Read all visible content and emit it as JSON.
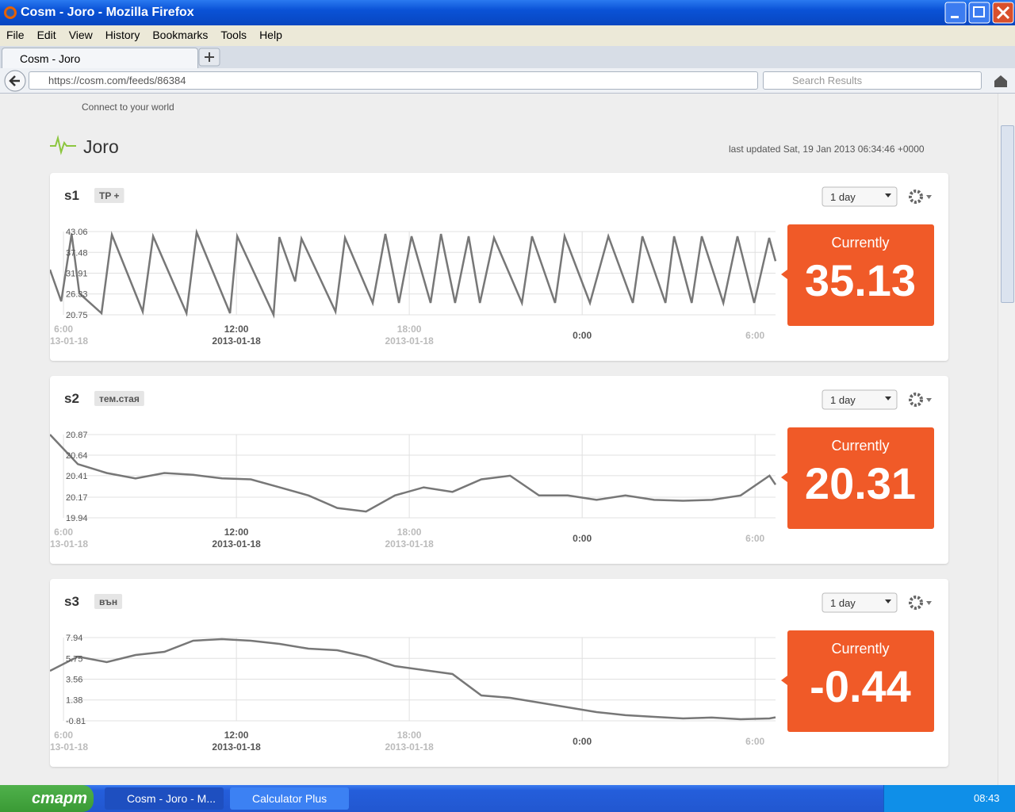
{
  "window": {
    "title": "Cosm - Joro - Mozilla Firefox",
    "menu": [
      "File",
      "Edit",
      "View",
      "History",
      "Bookmarks",
      "Tools",
      "Help"
    ]
  },
  "browser": {
    "tab": "Cosm - Joro",
    "url": "https://cosm.com/feeds/86384",
    "search": "Search Results"
  },
  "site": {
    "tagline": "Connect to your world",
    "feed_title": "Joro",
    "last_updated": "last updated Sat, 19 Jan 2013 06:34:46 +0000"
  },
  "chart_data": [
    {
      "type": "line",
      "title": "s1",
      "tag": "TP +",
      "range": "1 day",
      "current_label": "Currently",
      "current": 35.13,
      "x": [
        5.53,
        5.92,
        6.28,
        6.55,
        7.32,
        7.68,
        8.75,
        9.11,
        10.27,
        10.62,
        11.78,
        12.03,
        13.29,
        13.49,
        14.04,
        14.26,
        15.44,
        15.77,
        16.73,
        17.17,
        17.64,
        18.08,
        18.74,
        19.1,
        19.59,
        20.06,
        20.45,
        20.94,
        21.91,
        22.26,
        23.06,
        23.39,
        24.27,
        24.91,
        25.76,
        26.09,
        26.89,
        27.19,
        27.8,
        28.15,
        28.9,
        29.39,
        29.97,
        30.49,
        30.71
      ],
      "series": [
        {
          "color": "#777777",
          "values": [
            32.86,
            24.36,
            42.42,
            26.48,
            21.17,
            42.21,
            21.6,
            41.79,
            21.17,
            42.85,
            21.17,
            41.79,
            20.75,
            41.57,
            29.67,
            41.15,
            21.6,
            41.36,
            23.93,
            42.42,
            23.93,
            41.79,
            23.93,
            42.42,
            23.93,
            41.79,
            23.93,
            41.36,
            23.93,
            41.79,
            23.93,
            41.79,
            23.93,
            41.79,
            23.93,
            41.79,
            23.93,
            41.79,
            23.93,
            41.79,
            23.93,
            41.79,
            23.93,
            41.36,
            35.13
          ]
        }
      ],
      "xlim": [
        5.53,
        30.71
      ],
      "ylim": [
        20.75,
        43.06
      ],
      "yticks": [
        43.06,
        37.48,
        31.91,
        26.33,
        20.75
      ],
      "xticks": [
        {
          "value": 6,
          "label": "6:00",
          "date": "13-01-18"
        },
        {
          "value": 12,
          "label": "12:00",
          "date": "2013-01-18"
        },
        {
          "value": 18,
          "label": "18:00",
          "date": "2013-01-18"
        },
        {
          "value": 24,
          "label": "0:00"
        },
        {
          "value": 30,
          "label": "6:00"
        }
      ],
      "grid": true
    },
    {
      "type": "line",
      "title": "s2",
      "tag": "тем.стая",
      "range": "1 day",
      "current_label": "Currently",
      "current": 20.31,
      "x": [
        5.53,
        6.5,
        7.5,
        8.5,
        9.5,
        10.5,
        11.5,
        12.5,
        13.5,
        14.5,
        15.5,
        16.5,
        17.5,
        18.5,
        19.5,
        20.5,
        21.5,
        22.5,
        23.5,
        24.5,
        25.5,
        26.5,
        27.5,
        28.5,
        29.5,
        30.5,
        30.71
      ],
      "series": [
        {
          "color": "#777777",
          "values": [
            20.87,
            20.54,
            20.44,
            20.38,
            20.44,
            20.42,
            20.38,
            20.37,
            20.28,
            20.19,
            20.05,
            20.01,
            20.19,
            20.28,
            20.23,
            20.37,
            20.41,
            20.19,
            20.19,
            20.14,
            20.19,
            20.14,
            20.13,
            20.14,
            20.19,
            20.41,
            20.31
          ]
        }
      ],
      "xlim": [
        5.53,
        30.71
      ],
      "ylim": [
        19.94,
        20.87
      ],
      "yticks": [
        20.87,
        20.64,
        20.41,
        20.17,
        19.94
      ],
      "xticks": [
        {
          "value": 6,
          "label": "6:00",
          "date": "13-01-18"
        },
        {
          "value": 12,
          "label": "12:00",
          "date": "2013-01-18"
        },
        {
          "value": 18,
          "label": "18:00",
          "date": "2013-01-18"
        },
        {
          "value": 24,
          "label": "0:00"
        },
        {
          "value": 30,
          "label": "6:00"
        }
      ],
      "grid": true
    },
    {
      "type": "line",
      "title": "s3",
      "tag": "вън",
      "range": "1 day",
      "current_label": "Currently",
      "current": -0.44,
      "x": [
        5.53,
        6.5,
        7.5,
        8.5,
        9.5,
        10.5,
        11.5,
        12.5,
        13.5,
        14.5,
        15.5,
        16.5,
        17.5,
        18.5,
        19.5,
        20.5,
        21.5,
        22.5,
        23.5,
        24.5,
        25.5,
        26.5,
        27.5,
        28.5,
        29.5,
        30.5,
        30.71
      ],
      "series": [
        {
          "color": "#777777",
          "values": [
            4.44,
            5.94,
            5.36,
            6.11,
            6.44,
            7.61,
            7.77,
            7.61,
            7.27,
            6.77,
            6.61,
            5.94,
            4.94,
            4.52,
            4.11,
            1.86,
            1.61,
            1.11,
            0.61,
            0.11,
            -0.22,
            -0.39,
            -0.56,
            -0.47,
            -0.64,
            -0.56,
            -0.44
          ]
        }
      ],
      "xlim": [
        5.53,
        30.71
      ],
      "ylim": [
        -0.81,
        7.94
      ],
      "yticks": [
        7.94,
        5.75,
        3.56,
        1.38,
        -0.81
      ],
      "xticks": [
        {
          "value": 6,
          "label": "6:00",
          "date": "13-01-18"
        },
        {
          "value": 12,
          "label": "12:00",
          "date": "2013-01-18"
        },
        {
          "value": 18,
          "label": "18:00",
          "date": "2013-01-18"
        },
        {
          "value": 24,
          "label": "0:00"
        },
        {
          "value": 30,
          "label": "6:00"
        }
      ],
      "grid": true
    }
  ],
  "taskbar": {
    "start": "старт",
    "tasks": [
      "Cosm - Joro - M...",
      "Calculator Plus"
    ],
    "clock": "08:43"
  }
}
